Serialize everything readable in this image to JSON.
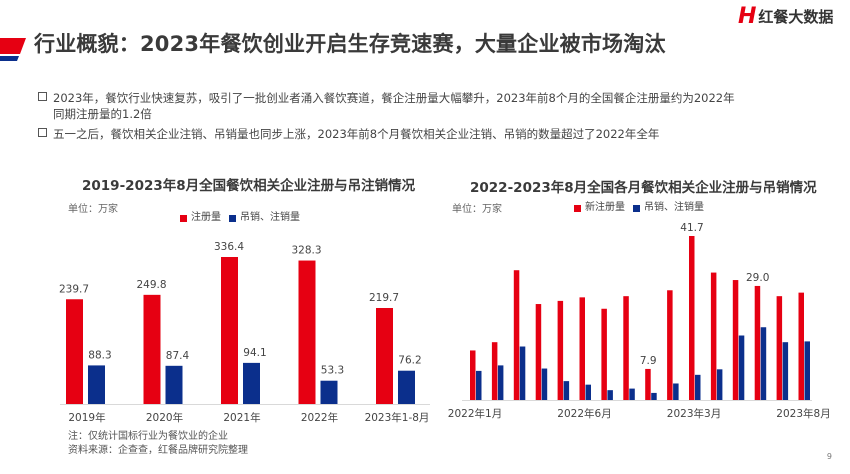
{
  "header": {
    "title": "行业概貌：2023年餐饮创业开启生存竞速赛，大量企业被市场淘汰",
    "logo_mark": "H",
    "logo_text": "红餐大数据",
    "watermark": "红餐大数据"
  },
  "bullets": [
    {
      "line1": "2023年，餐饮行业快速复苏，吸引了一批创业者涌入餐饮赛道，餐企注册量大幅攀升，2023年前8个月的全国餐企注册量约为2022年",
      "line2": "同期注册量的1.2倍"
    },
    {
      "line1": "五一之后，餐饮相关企业注销、吊销量也同步上涨，2023年前8个月餐饮相关企业注销、吊销的数量超过了2022年全年"
    }
  ],
  "colors": {
    "red": "#e60012",
    "blue": "#0b2f8c"
  },
  "chart_data": [
    {
      "type": "bar",
      "title": "2019-2023年8月全国餐饮相关企业注册与吊注销情况",
      "unit": "单位：万家",
      "categories": [
        "2019年",
        "2020年",
        "2021年",
        "2022年",
        "2023年1-8月"
      ],
      "series": [
        {
          "name": "注册量",
          "values": [
            239.7,
            249.8,
            336.4,
            328.3,
            219.7
          ]
        },
        {
          "name": "吊销、注销量",
          "values": [
            88.3,
            87.4,
            94.1,
            53.3,
            76.2
          ]
        }
      ],
      "data_labels": true,
      "legend": "top",
      "grid": false,
      "notes": [
        "注：仅统计国标行业为餐饮业的企业",
        "资料来源：企查查，红餐品牌研究院整理"
      ]
    },
    {
      "type": "bar",
      "title": "2022-2023年8月全国各月餐饮相关企业注册与吊销情况",
      "unit": "单位：万家",
      "categories": [
        "2022年1月",
        "",
        "",
        "",
        "",
        "2022年6月",
        "",
        "",
        "",
        "",
        "2023年3月",
        "",
        "",
        "",
        "",
        "2023年8月"
      ],
      "series": [
        {
          "name": "新注册量",
          "values": [
            12.6,
            14.7,
            33.0,
            24.4,
            25.2,
            26.1,
            23.2,
            26.4,
            7.9,
            27.9,
            41.7,
            32.4,
            30.5,
            29.0,
            26.4,
            27.3
          ]
        },
        {
          "name": "吊销、注销量",
          "values": [
            7.4,
            8.8,
            13.6,
            8.0,
            4.8,
            3.9,
            2.5,
            2.9,
            1.8,
            4.2,
            6.4,
            7.8,
            16.4,
            18.5,
            14.7,
            14.9
          ]
        }
      ],
      "labeled_points": [
        {
          "index": 8,
          "label": "7.9"
        },
        {
          "index": 10,
          "label": "41.7"
        },
        {
          "index": 13,
          "label": "29.0"
        }
      ],
      "legend": "top",
      "grid": false
    }
  ],
  "page_number": "9"
}
